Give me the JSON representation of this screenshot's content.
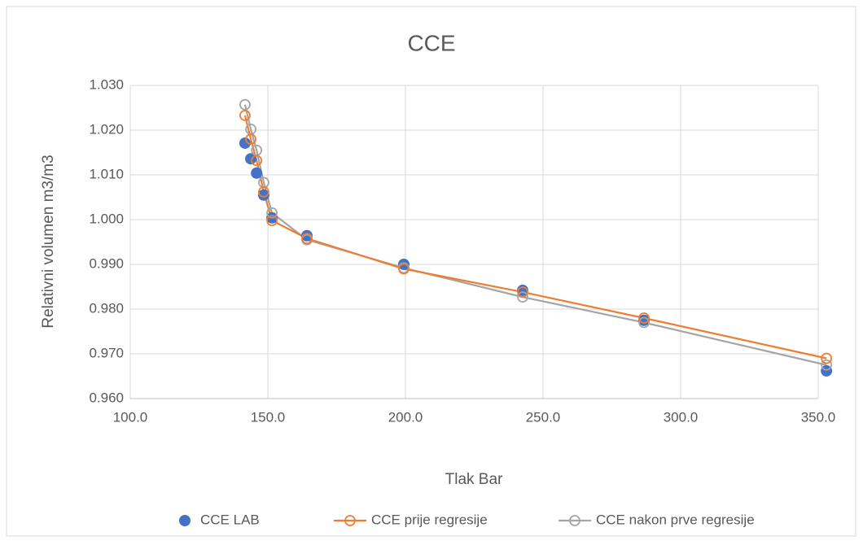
{
  "chart_data": {
    "type": "scatter",
    "title": "CCE",
    "x_label": "Tlak Bar",
    "y_label": "Relativni volumen m3/m3",
    "x": [
      141.7,
      143.8,
      145.9,
      148.5,
      151.5,
      164.2,
      199.4,
      242.6,
      286.7,
      353.0
    ],
    "series": [
      {
        "name": "CCE LAB",
        "color": "#4472c4",
        "marker": "filled",
        "line": false,
        "values": [
          1.0171,
          1.0136,
          1.0104,
          1.0055,
          1.0004,
          0.9964,
          0.99,
          0.9842,
          0.9775,
          0.9662
        ]
      },
      {
        "name": "CCE prije regresije",
        "color": "#ed7d31",
        "marker": "hollow",
        "line": true,
        "values": [
          1.0233,
          1.018,
          1.0132,
          1.0062,
          0.9998,
          0.9958,
          0.989,
          0.9838,
          0.978,
          0.969
        ]
      },
      {
        "name": "CCE nakon prve regresije",
        "color": "#a5a5a5",
        "marker": "hollow",
        "line": true,
        "values": [
          1.0257,
          1.0202,
          1.0155,
          1.0083,
          1.0015,
          0.9955,
          0.9892,
          0.9827,
          0.977,
          0.9675
        ]
      }
    ],
    "xlim": [
      100,
      350
    ],
    "xticks": [
      {
        "value": 100,
        "label": "100.0"
      },
      {
        "value": 150,
        "label": "150.0"
      },
      {
        "value": 200,
        "label": "200.0"
      },
      {
        "value": 250,
        "label": "250.0"
      },
      {
        "value": 300,
        "label": "300.0"
      },
      {
        "value": 350,
        "label": "350.0"
      }
    ],
    "ylim": [
      0.96,
      1.03
    ],
    "yticks": [
      {
        "value": 0.96,
        "label": "0.960"
      },
      {
        "value": 0.97,
        "label": "0.970"
      },
      {
        "value": 0.98,
        "label": "0.980"
      },
      {
        "value": 0.99,
        "label": "0.990"
      },
      {
        "value": 1.0,
        "label": "1.000"
      },
      {
        "value": 1.01,
        "label": "1.010"
      },
      {
        "value": 1.02,
        "label": "1.020"
      },
      {
        "value": 1.03,
        "label": "1.030"
      }
    ],
    "grid": true,
    "legend": "bottom"
  }
}
